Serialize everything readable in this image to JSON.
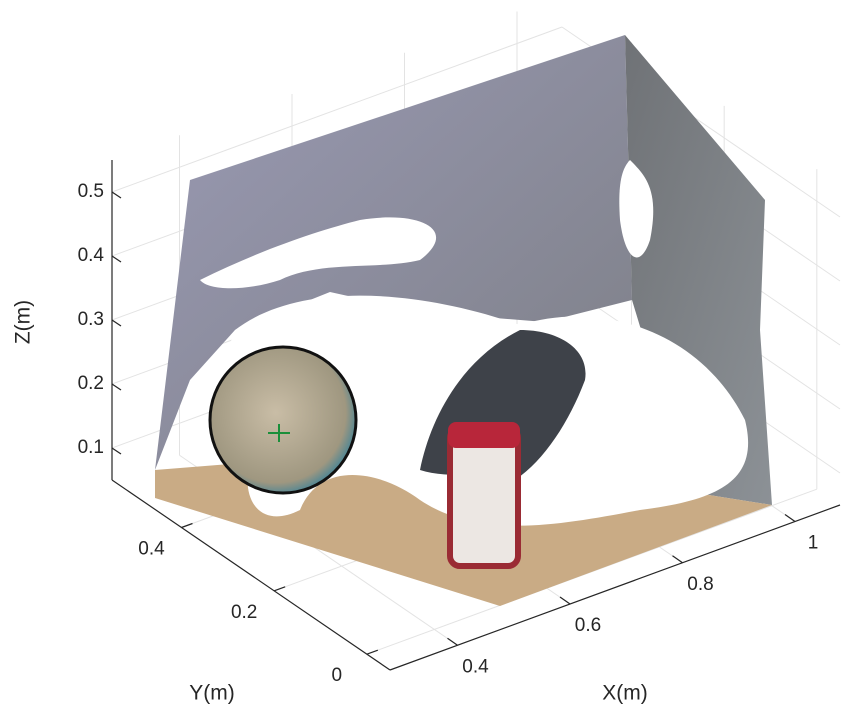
{
  "chart_data": {
    "type": "scatter3d",
    "xlabel": "X(m)",
    "ylabel": "Y(m)",
    "zlabel": "Z(m)",
    "xlim": [
      0.28,
      1.08
    ],
    "xticks": [
      0.4,
      0.6,
      0.8,
      1
    ],
    "ylim": [
      -0.05,
      0.55
    ],
    "yticks": [
      0,
      0.2,
      0.4
    ],
    "zlim": [
      0.05,
      0.55
    ],
    "zticks": [
      0.1,
      0.2,
      0.3,
      0.4,
      0.5
    ],
    "grid": true
  }
}
